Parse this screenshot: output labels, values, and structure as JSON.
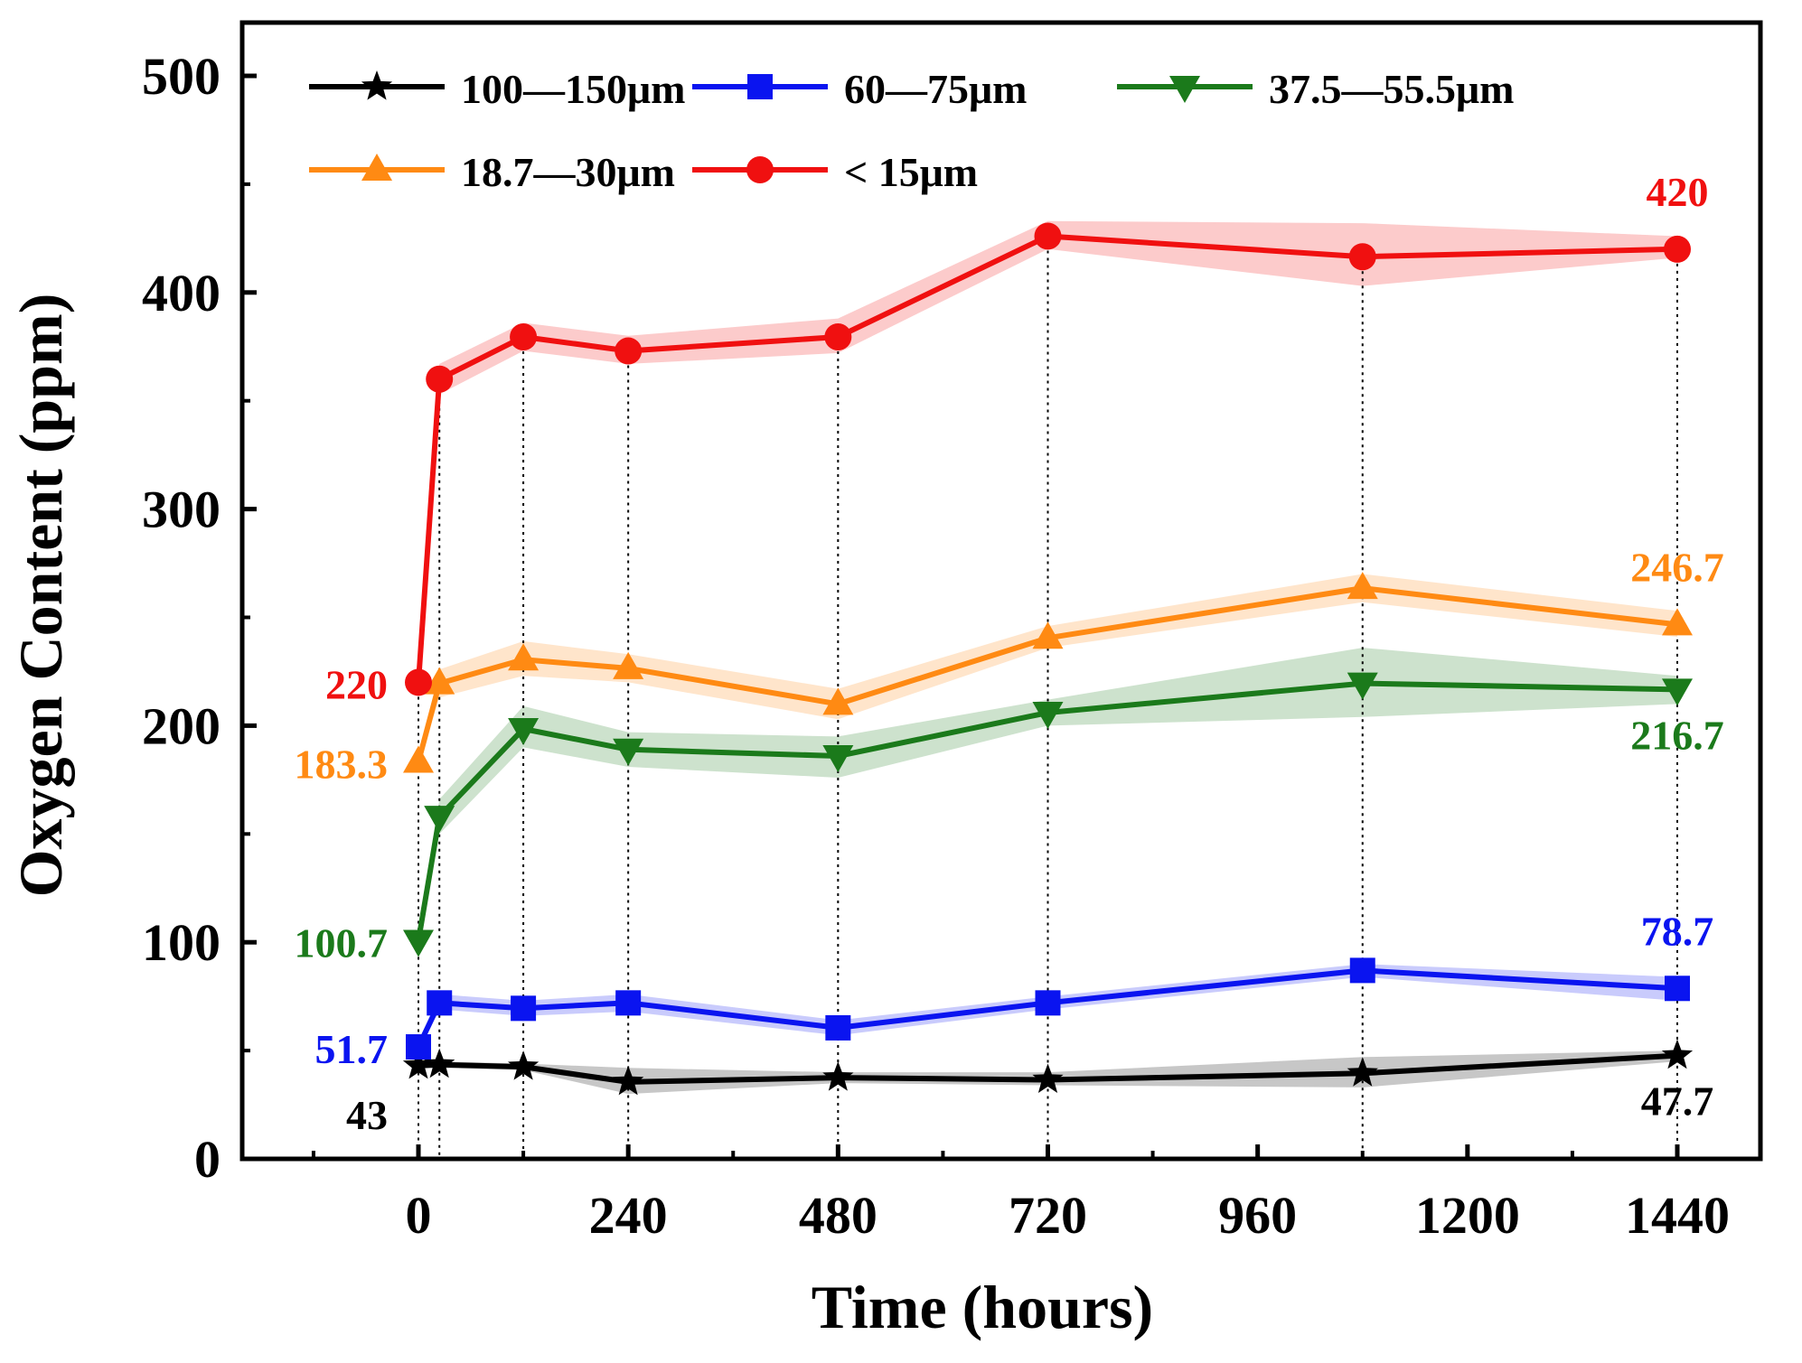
{
  "chart_data": {
    "type": "line",
    "xlabel": "Time (hours)",
    "ylabel": "Oxygen Content (ppm)",
    "xlim": [
      -200,
      1520
    ],
    "ylim": [
      0,
      525
    ],
    "xticks": [
      0,
      240,
      480,
      720,
      960,
      1200,
      1440
    ],
    "yticks": [
      0,
      100,
      200,
      300,
      400,
      500
    ],
    "x": [
      0,
      24,
      120,
      240,
      480,
      720,
      1080,
      1440
    ],
    "series": [
      {
        "name": "100—150μm",
        "color": "#000000",
        "marker": "star",
        "values": [
          43,
          43.5,
          42.5,
          35.5,
          37.5,
          36.5,
          39.5,
          47.7
        ],
        "band": [
          [
            42,
            44
          ],
          [
            42,
            45
          ],
          [
            41,
            44
          ],
          [
            30,
            42
          ],
          [
            35,
            40
          ],
          [
            34,
            40
          ],
          [
            33,
            47
          ],
          [
            45,
            50
          ]
        ]
      },
      {
        "name": "60—75μm",
        "color": "#0a14f0",
        "marker": "square",
        "values": [
          51.7,
          72,
          69.5,
          72,
          60.5,
          72,
          87,
          78.7
        ],
        "band": [
          [
            50,
            54
          ],
          [
            69,
            76
          ],
          [
            66,
            73
          ],
          [
            68,
            76
          ],
          [
            57,
            64
          ],
          [
            69,
            75
          ],
          [
            84,
            90
          ],
          [
            73,
            84
          ]
        ]
      },
      {
        "name": "37.5—55.5μm",
        "color": "#1b7a1b",
        "marker": "triangle-down",
        "values": [
          100.7,
          158,
          198.5,
          189,
          186,
          206,
          219.5,
          216.7
        ],
        "band": [
          [
            99,
            102
          ],
          [
            150,
            166
          ],
          [
            190,
            209
          ],
          [
            181,
            197
          ],
          [
            176,
            195
          ],
          [
            200,
            212
          ],
          [
            204,
            236
          ],
          [
            210,
            223
          ]
        ]
      },
      {
        "name": "18.7—30μm",
        "color": "#ff8a13",
        "marker": "triangle-up",
        "values": [
          183.3,
          219.5,
          230.5,
          226.5,
          210,
          240.5,
          263.5,
          246.7
        ],
        "band": [
          [
            182,
            185
          ],
          [
            213,
            226
          ],
          [
            223,
            239
          ],
          [
            220,
            233
          ],
          [
            203,
            217
          ],
          [
            236,
            246
          ],
          [
            257,
            270
          ],
          [
            241,
            253
          ]
        ]
      },
      {
        "name": "< 15μm",
        "color": "#f01010",
        "marker": "circle",
        "values": [
          220,
          360,
          379.5,
          373,
          379.5,
          426,
          416.5,
          420
        ],
        "band": [
          [
            219,
            221
          ],
          [
            353,
            367
          ],
          [
            373,
            386
          ],
          [
            367,
            380
          ],
          [
            372,
            388
          ],
          [
            420,
            433
          ],
          [
            403,
            432
          ],
          [
            416,
            426
          ]
        ]
      }
    ],
    "vlines_at": [
      0,
      24,
      120,
      240,
      480,
      720,
      1080,
      1440
    ],
    "annotations": [
      {
        "text": "420",
        "series": 4,
        "position": "above-right-end"
      },
      {
        "text": "220",
        "series": 4,
        "position": "left-start"
      },
      {
        "text": "246.7",
        "series": 3,
        "position": "above-right-end"
      },
      {
        "text": "183.3",
        "series": 3,
        "position": "left-start"
      },
      {
        "text": "216.7",
        "series": 2,
        "position": "below-right-end"
      },
      {
        "text": "100.7",
        "series": 2,
        "position": "left-start"
      },
      {
        "text": "78.7",
        "series": 1,
        "position": "above-right-end"
      },
      {
        "text": "51.7",
        "series": 1,
        "position": "left-start"
      },
      {
        "text": "47.7",
        "series": 0,
        "position": "below-right-end"
      },
      {
        "text": "43",
        "series": 0,
        "position": "below-left-start"
      }
    ],
    "legend_position": "top-left, two rows",
    "grid": false
  }
}
